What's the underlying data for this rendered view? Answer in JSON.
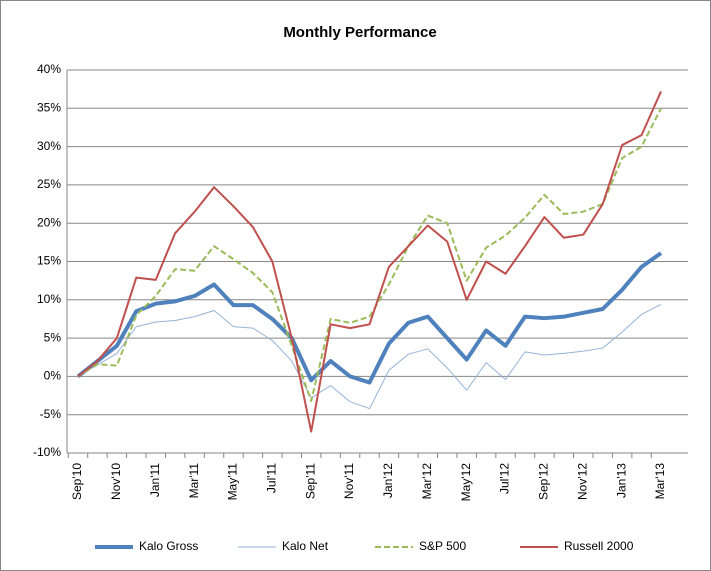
{
  "chart_data": {
    "type": "line",
    "title": "Monthly Performance",
    "categories": [
      "Sep'10",
      null,
      "Nov'10",
      null,
      "Jan'11",
      null,
      "Mar'11",
      null,
      "May'11",
      null,
      "Jul'11",
      null,
      "Sep'11",
      null,
      "Nov'11",
      null,
      "Jan'12",
      null,
      "Mar'12",
      null,
      "May'12",
      null,
      "Jul'12",
      null,
      "Sep'12",
      null,
      "Nov'12",
      null,
      "Jan'13",
      null,
      "Mar'13"
    ],
    "series": [
      {
        "name": "Kalo Gross",
        "color": "#4f81bd",
        "width": 4,
        "dashed": false,
        "values": [
          0,
          2,
          4,
          8.5,
          9.5,
          9.8,
          10.5,
          12,
          9.3,
          9.3,
          7.5,
          5,
          -0.5,
          2,
          0,
          -0.8,
          4.3,
          7,
          7.8,
          5,
          2.2,
          6,
          4,
          7.8,
          7.6,
          7.8,
          8.3,
          8.8,
          11.3,
          14.3,
          16.1
        ]
      },
      {
        "name": "Kalo Net",
        "color": "#95b3d7",
        "width": 1,
        "dashed": false,
        "values": [
          0,
          1.5,
          3,
          6.5,
          7.1,
          7.3,
          7.8,
          8.6,
          6.5,
          6.3,
          4.7,
          2,
          -2.8,
          -1.2,
          -3.3,
          -4.2,
          0.8,
          2.9,
          3.6,
          1.1,
          -1.8,
          1.8,
          -0.4,
          3.2,
          2.8,
          3,
          3.3,
          3.7,
          5.8,
          8.1,
          9.4
        ]
      },
      {
        "name": "S&P 500",
        "color": "#9bbb59",
        "width": 2,
        "dashed": true,
        "values": [
          0,
          1.6,
          1.4,
          8,
          10.5,
          14,
          13.8,
          17,
          15.3,
          13.5,
          11,
          4,
          -3.2,
          7.5,
          7,
          7.8,
          12,
          17,
          21,
          20,
          12.5,
          16.8,
          18.4,
          20.7,
          23.7,
          21.2,
          21.5,
          22.5,
          28.5,
          30,
          35
        ]
      },
      {
        "name": "Russell 2000",
        "color": "#c0504d",
        "width": 2,
        "dashed": false,
        "values": [
          0,
          2,
          5,
          12.9,
          12.6,
          18.7,
          21.5,
          24.7,
          22.2,
          19.5,
          15,
          5,
          -7.2,
          6.8,
          6.3,
          6.8,
          14.3,
          17,
          19.7,
          17.6,
          10,
          15,
          13.4,
          17,
          20.8,
          18.1,
          18.5,
          22.5,
          30.2,
          31.5,
          37.2
        ]
      }
    ],
    "ylim": [
      -10,
      40
    ],
    "yticks": [
      {
        "value": -10,
        "label": "-10%"
      },
      {
        "value": -5,
        "label": "-5%"
      },
      {
        "value": 0,
        "label": "0%"
      },
      {
        "value": 5,
        "label": "5%"
      },
      {
        "value": 10,
        "label": "10%"
      },
      {
        "value": 15,
        "label": "15%"
      },
      {
        "value": 20,
        "label": "20%"
      },
      {
        "value": 25,
        "label": "25%"
      },
      {
        "value": 30,
        "label": "30%"
      },
      {
        "value": 35,
        "label": "35%"
      },
      {
        "value": 40,
        "label": "40%"
      }
    ],
    "grid": true,
    "legend": "bottom"
  }
}
